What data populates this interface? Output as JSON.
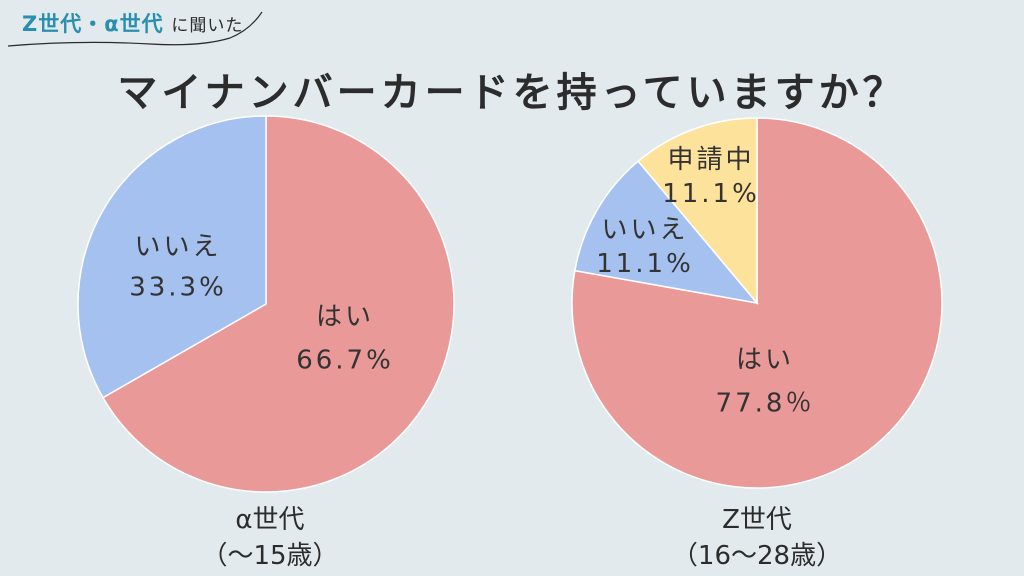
{
  "badge": {
    "highlight": "Z世代・α世代",
    "rest": "に聞いた"
  },
  "title": "マイナンバーカードを持っていますか？",
  "colors": {
    "background": "#e2eaee",
    "yes": "#e99a98",
    "no": "#a5c1f0",
    "applying": "#fde29b",
    "accent": "#2a8fae"
  },
  "chart_data": [
    {
      "type": "pie",
      "group_name": "α世代",
      "group_range": "（〜15歳）",
      "slices": [
        {
          "label": "はい",
          "value": 66.7,
          "value_label": "66.7%",
          "color": "#e99a98"
        },
        {
          "label": "いいえ",
          "value": 33.3,
          "value_label": "33.3%",
          "color": "#a5c1f0"
        }
      ]
    },
    {
      "type": "pie",
      "group_name": "Z世代",
      "group_range": "（16〜28歳）",
      "slices": [
        {
          "label": "はい",
          "value": 77.8,
          "value_label": "77.8％",
          "color": "#e99a98"
        },
        {
          "label": "いいえ",
          "value": 11.1,
          "value_label": "11.1%",
          "color": "#a5c1f0"
        },
        {
          "label": "申請中",
          "value": 11.1,
          "value_label": "11.1%",
          "color": "#fde29b"
        }
      ]
    }
  ]
}
